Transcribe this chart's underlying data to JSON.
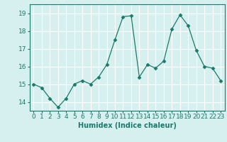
{
  "x": [
    0,
    1,
    2,
    3,
    4,
    5,
    6,
    7,
    8,
    9,
    10,
    11,
    12,
    13,
    14,
    15,
    16,
    17,
    18,
    19,
    20,
    21,
    22,
    23
  ],
  "y": [
    15.0,
    14.8,
    14.2,
    13.7,
    14.2,
    15.0,
    15.2,
    15.0,
    15.4,
    16.1,
    17.5,
    18.8,
    18.85,
    15.4,
    16.1,
    15.9,
    16.3,
    18.1,
    18.9,
    18.3,
    16.9,
    16.0,
    15.9,
    15.2
  ],
  "line_color": "#1a7a6a",
  "marker": "D",
  "marker_size": 2.5,
  "bg_color": "#d6f0f0",
  "grid_color": "#ffffff",
  "xlabel": "Humidex (Indice chaleur)",
  "ylim": [
    13.5,
    19.5
  ],
  "xlim": [
    -0.5,
    23.5
  ],
  "yticks": [
    14,
    15,
    16,
    17,
    18,
    19
  ],
  "xticks": [
    0,
    1,
    2,
    3,
    4,
    5,
    6,
    7,
    8,
    9,
    10,
    11,
    12,
    13,
    14,
    15,
    16,
    17,
    18,
    19,
    20,
    21,
    22,
    23
  ],
  "label_fontsize": 7,
  "tick_fontsize": 6.5
}
